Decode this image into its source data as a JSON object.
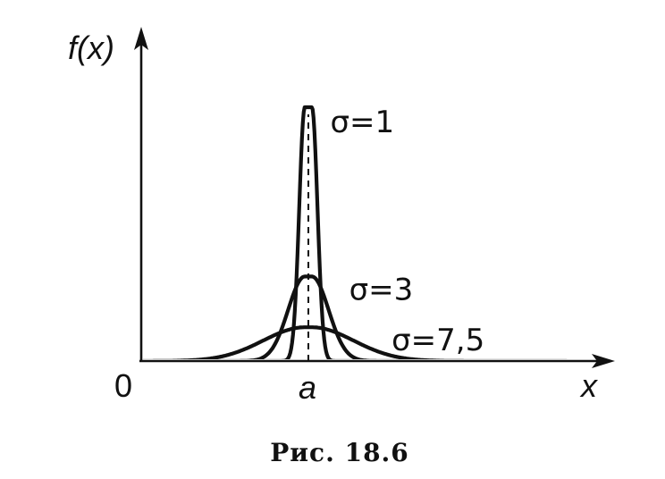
{
  "chart_data": {
    "type": "line",
    "title": "",
    "xlabel": "x",
    "ylabel": "f(x)",
    "origin_label": "0",
    "mean_label": "a",
    "mean_marker": "dashed vertical line at a",
    "grid": false,
    "series": [
      {
        "name": "σ=1",
        "sigma": 1,
        "peak": 1.0
      },
      {
        "name": "σ=3",
        "sigma": 3,
        "peak": 0.333
      },
      {
        "name": "σ=7,5",
        "sigma": 7.5,
        "peak": 0.133
      }
    ]
  },
  "caption": "Рис. 18.6"
}
